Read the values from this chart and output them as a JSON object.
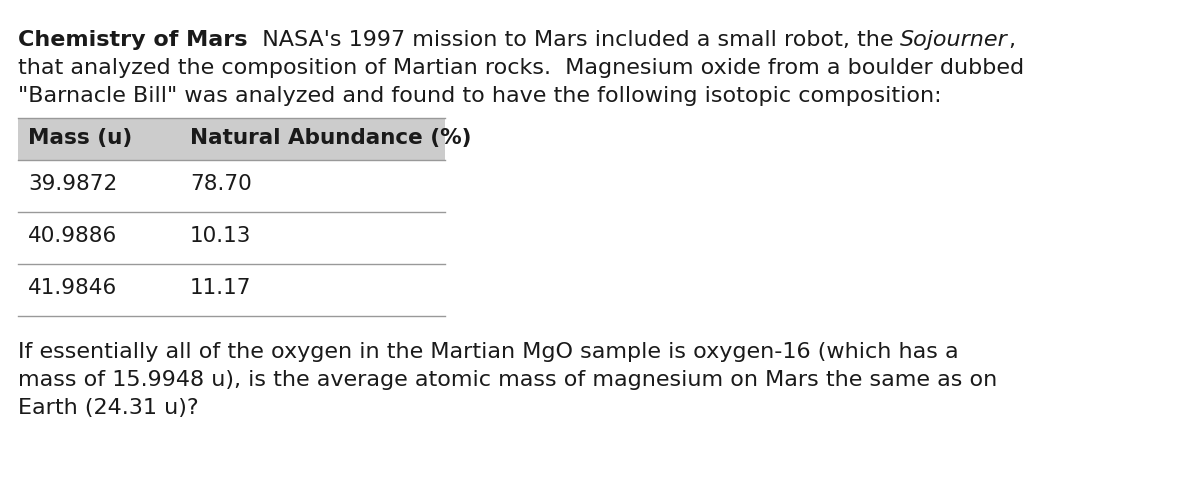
{
  "bg_color": "#ffffff",
  "text_color": "#1a1a1a",
  "header_bg": "#cccccc",
  "table_line_color": "#999999",
  "font_size": 16,
  "table_font_size": 15.5,
  "col1_header": "Mass (u)",
  "col2_header": "Natural Abundance (%)",
  "table_data": [
    [
      "39.9872",
      "78.70"
    ],
    [
      "40.9886",
      "10.13"
    ],
    [
      "41.9846",
      "11.17"
    ]
  ],
  "footer_line1": "If essentially all of the oxygen in the Martian MgO sample is oxygen-16 (which has a",
  "footer_line2": "mass of 15.9948 u), is the average atomic mass of magnesium on Mars the same as on",
  "footer_line3": "Earth (24.31 u)?"
}
